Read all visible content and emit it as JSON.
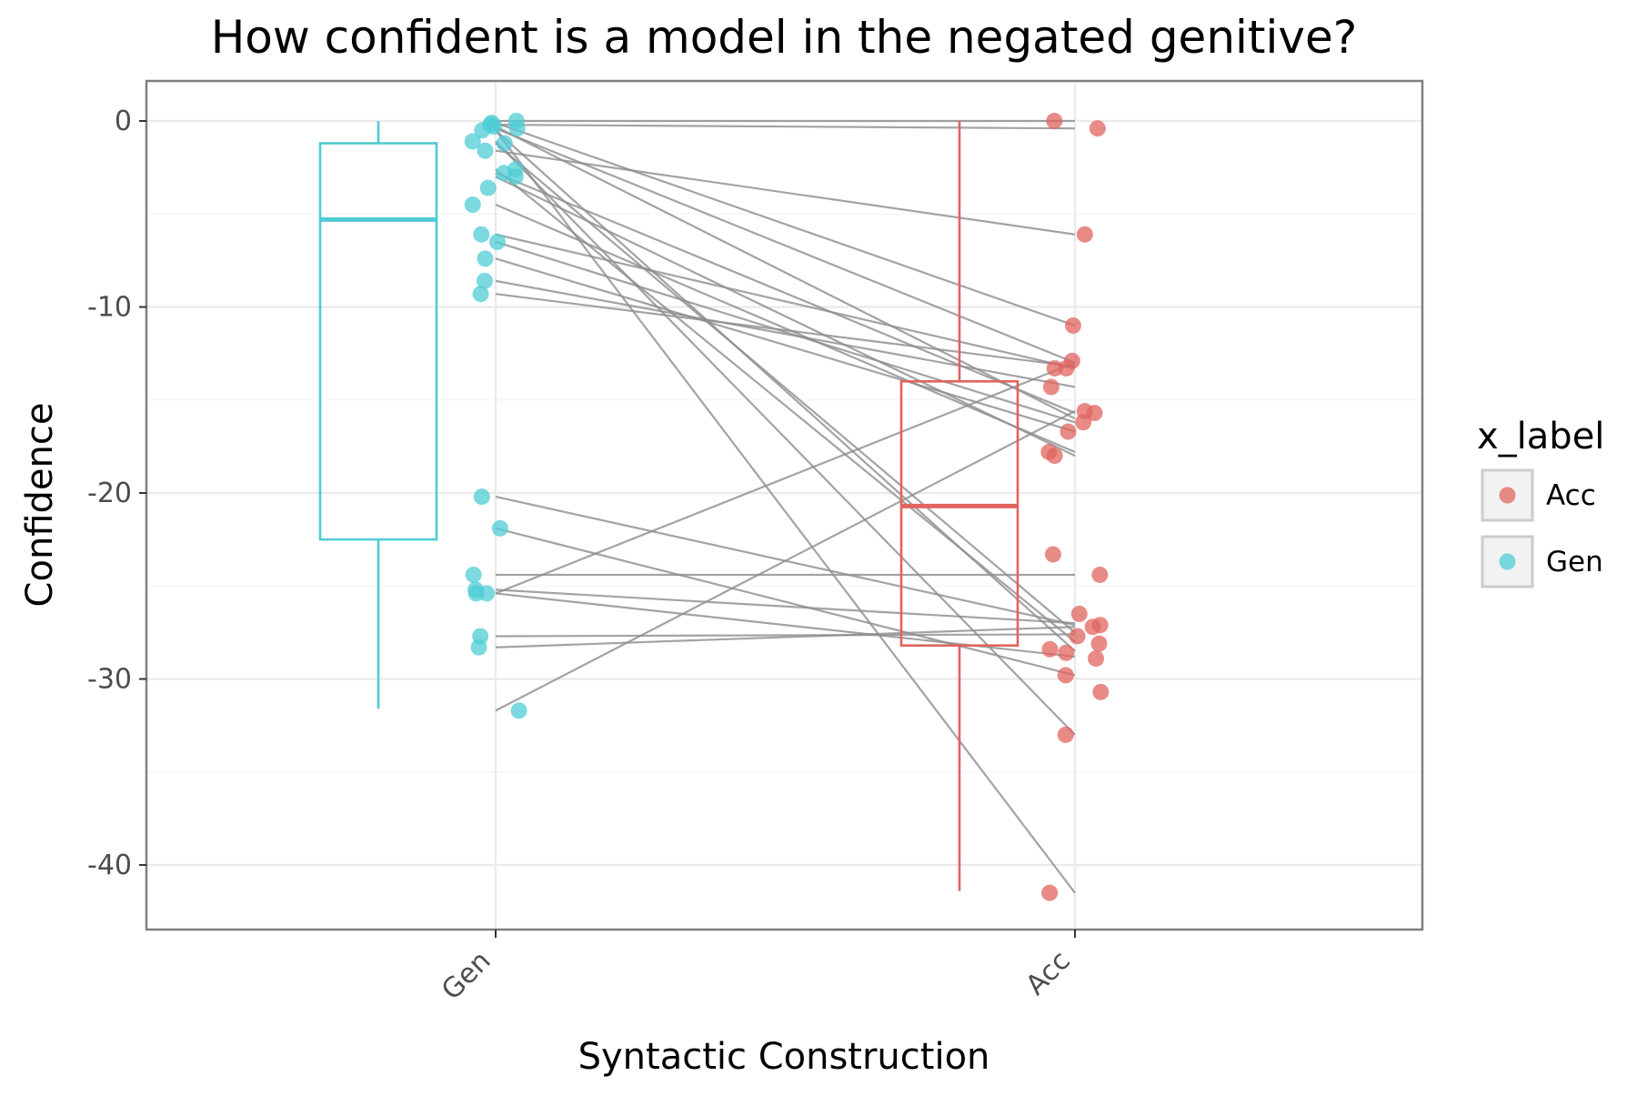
{
  "chart_data": {
    "type": "box",
    "title": "How confident is a model in the negated genitive?",
    "xlabel": "Syntactic Construction",
    "ylabel": "Confidence",
    "categories": [
      "Gen",
      "Acc"
    ],
    "ylim": [
      -43.5,
      2
    ],
    "y_ticks": [
      0,
      -10,
      -20,
      -30,
      -40
    ],
    "grid": true,
    "legend": {
      "title": "x_label",
      "position": "right",
      "entries": [
        {
          "label": "Acc",
          "color": "#E0645F"
        },
        {
          "label": "Gen",
          "color": "#4FCCD4"
        }
      ]
    },
    "boxes": [
      {
        "category": "Gen",
        "color": "#4FCCD4",
        "whisker_low": -31.6,
        "q1": -22.5,
        "median": -5.3,
        "q3": -1.2,
        "whisker_high": 0.0
      },
      {
        "category": "Acc",
        "color": "#E0645F",
        "whisker_low": -41.4,
        "q1": -28.2,
        "median": -20.7,
        "q3": -14.0,
        "whisker_high": 0.0
      }
    ],
    "pairs": [
      [
        0.0,
        0.0
      ],
      [
        -0.2,
        -0.4
      ],
      [
        -0.1,
        -11.0
      ],
      [
        -0.4,
        -13.0
      ],
      [
        -0.3,
        -16.0
      ],
      [
        -0.5,
        -28.5
      ],
      [
        -0.5,
        -41.5
      ],
      [
        -1.2,
        -27.5
      ],
      [
        -1.1,
        -33.0
      ],
      [
        -1.6,
        -6.1
      ],
      [
        -2.6,
        -28.0
      ],
      [
        -2.8,
        -15.7
      ],
      [
        -3.0,
        -18.0
      ],
      [
        -4.5,
        -17.8
      ],
      [
        -6.1,
        -13.3
      ],
      [
        -6.5,
        -16.2
      ],
      [
        -7.4,
        -16.7
      ],
      [
        -8.6,
        -14.3
      ],
      [
        -9.3,
        -13.2
      ],
      [
        -20.2,
        -27.1
      ],
      [
        -21.9,
        -29.8
      ],
      [
        -24.4,
        -24.4
      ],
      [
        -25.2,
        -27.0
      ],
      [
        -25.4,
        -13.0
      ],
      [
        -25.4,
        -28.8
      ],
      [
        -27.7,
        -27.6
      ],
      [
        -28.3,
        -27.2
      ],
      [
        -31.7,
        -15.6
      ]
    ],
    "gen_points": [
      0.0,
      -0.2,
      -0.1,
      -0.4,
      -0.3,
      -0.5,
      -1.2,
      -1.1,
      -1.6,
      -2.6,
      -2.8,
      -3.0,
      -3.6,
      -4.5,
      -6.1,
      -6.5,
      -7.4,
      -8.6,
      -9.3,
      -20.2,
      -21.9,
      -24.4,
      -25.2,
      -25.4,
      -25.4,
      -27.7,
      -28.3,
      -31.7
    ],
    "acc_points": [
      0.0,
      -0.4,
      -6.1,
      -11.0,
      -12.9,
      -13.3,
      -13.3,
      -14.3,
      -15.6,
      -15.7,
      -16.2,
      -16.7,
      -17.8,
      -18.0,
      -23.3,
      -24.4,
      -26.5,
      -27.1,
      -27.2,
      -27.7,
      -28.1,
      -28.4,
      -28.6,
      -28.9,
      -29.8,
      -30.7,
      -33.0,
      -41.5
    ]
  }
}
